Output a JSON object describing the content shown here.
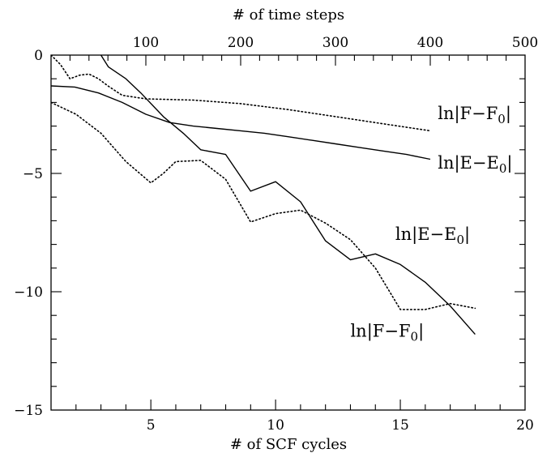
{
  "chart_data": {
    "type": "line",
    "title": "",
    "xlabel": "# of SCF cycles",
    "x2label": "# of time steps",
    "ylabel": "",
    "xlim": [
      1,
      20
    ],
    "x2lim": [
      0,
      500
    ],
    "ylim": [
      -15,
      0
    ],
    "x_ticks": [
      5,
      10,
      15,
      20
    ],
    "x2_ticks": [
      100,
      200,
      300,
      400,
      500
    ],
    "y_ticks": [
      0,
      -5,
      -10,
      -15
    ],
    "grid": false,
    "series": [
      {
        "name": "ln|E−E0|",
        "axis": "top",
        "style": "solid",
        "x": [
          0,
          25,
          50,
          75,
          100,
          125,
          150,
          175,
          200,
          225,
          250,
          275,
          300,
          325,
          350,
          375,
          400
        ],
        "y": [
          -1.3,
          -1.35,
          -1.6,
          -2.0,
          -2.5,
          -2.85,
          -3.0,
          -3.1,
          -3.2,
          -3.3,
          -3.45,
          -3.6,
          -3.75,
          -3.9,
          -4.05,
          -4.2,
          -4.4
        ]
      },
      {
        "name": "ln|F−F0|",
        "axis": "top",
        "style": "dotted",
        "x": [
          0,
          10,
          20,
          30,
          40,
          50,
          60,
          75,
          100,
          150,
          200,
          250,
          300,
          350,
          400
        ],
        "y": [
          0.0,
          -0.4,
          -1.0,
          -0.85,
          -0.8,
          -1.0,
          -1.3,
          -1.7,
          -1.85,
          -1.9,
          -2.05,
          -2.3,
          -2.6,
          -2.9,
          -3.2
        ]
      },
      {
        "name": "ln|E−E0|",
        "axis": "bottom",
        "style": "solid",
        "x": [
          3.0,
          3.3,
          4.0,
          4.6,
          5.5,
          6.3,
          7.0,
          7.5,
          8.0,
          9.0,
          10.0,
          11.0,
          12.0,
          13.0,
          14.0,
          15.0,
          16.0,
          17.0,
          18.0
        ],
        "y": [
          0.0,
          -0.5,
          -1.0,
          -1.6,
          -2.6,
          -3.3,
          -4.0,
          -4.1,
          -4.2,
          -5.75,
          -5.35,
          -6.2,
          -7.85,
          -8.65,
          -8.4,
          -8.85,
          -9.6,
          -10.6,
          -11.8
        ]
      },
      {
        "name": "ln|F−F0|",
        "axis": "bottom",
        "style": "dotted",
        "x": [
          1.0,
          2.0,
          3.0,
          4.0,
          5.0,
          5.5,
          6.0,
          7.0,
          8.0,
          9.0,
          10.0,
          11.0,
          12.0,
          13.0,
          14.0,
          15.0,
          16.0,
          17.0,
          18.0
        ],
        "y": [
          -2.0,
          -2.5,
          -3.3,
          -4.5,
          -5.4,
          -5.0,
          -4.5,
          -4.45,
          -5.25,
          -7.05,
          -6.7,
          -6.55,
          -7.1,
          -7.8,
          -9.0,
          -10.75,
          -10.75,
          -10.5,
          -10.7
        ]
      }
    ],
    "annotations": [
      {
        "text": "ln|F−F",
        "sub": "0",
        "close": "|",
        "x": 16.5,
        "y": -2.7
      },
      {
        "text": "ln|E−E",
        "sub": "0",
        "close": "|",
        "x": 16.5,
        "y": -4.8
      },
      {
        "text": "ln|E−E",
        "sub": "0",
        "close": "|",
        "x": 14.8,
        "y": -7.8
      },
      {
        "text": "ln|F−F",
        "sub": "0",
        "close": "|",
        "x": 13.0,
        "y": -11.9
      }
    ]
  }
}
